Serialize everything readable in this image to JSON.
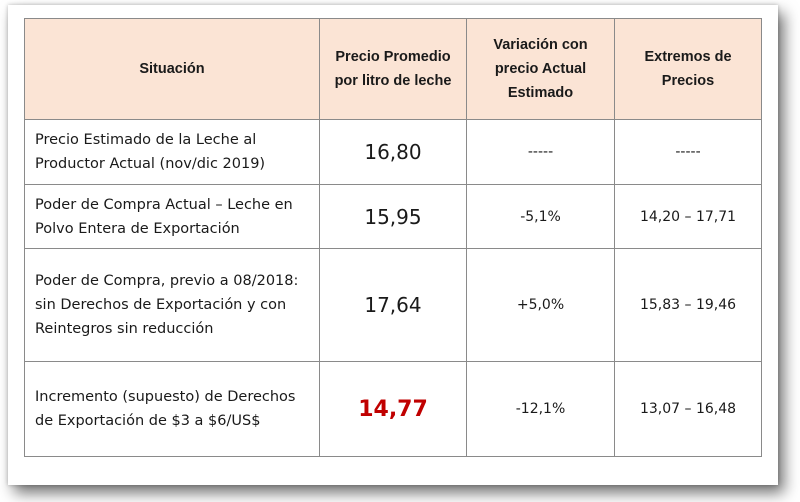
{
  "table": {
    "headers": [
      "Situación",
      "Precio Promedio por litro de leche",
      "Variación con precio Actual Estimado",
      "Extremos de Precios"
    ],
    "header_accent_color": "#fbe4d5",
    "highlight_color": "#c00000",
    "rows": [
      {
        "situacion": "Precio Estimado de la Leche al Productor Actual (nov/dic 2019)",
        "precio": "16,80",
        "variacion": "-----",
        "extremos": "-----"
      },
      {
        "situacion": "Poder de Compra Actual – Leche en Polvo Entera de Exportación",
        "precio": "15,95",
        "variacion": "-5,1%",
        "extremos": "14,20 – 17,71"
      },
      {
        "situacion": "Poder de Compra, previo a 08/2018: sin Derechos de Exportación y con Reintegros sin reducción",
        "precio": "17,64",
        "variacion": "+5,0%",
        "extremos": "15,83 – 19,46"
      },
      {
        "situacion": "Incremento (supuesto) de Derechos de Exportación de $3 a $6/US$",
        "precio": "14,77",
        "variacion": "-12,1%",
        "extremos": "13,07 – 16,48"
      }
    ]
  }
}
